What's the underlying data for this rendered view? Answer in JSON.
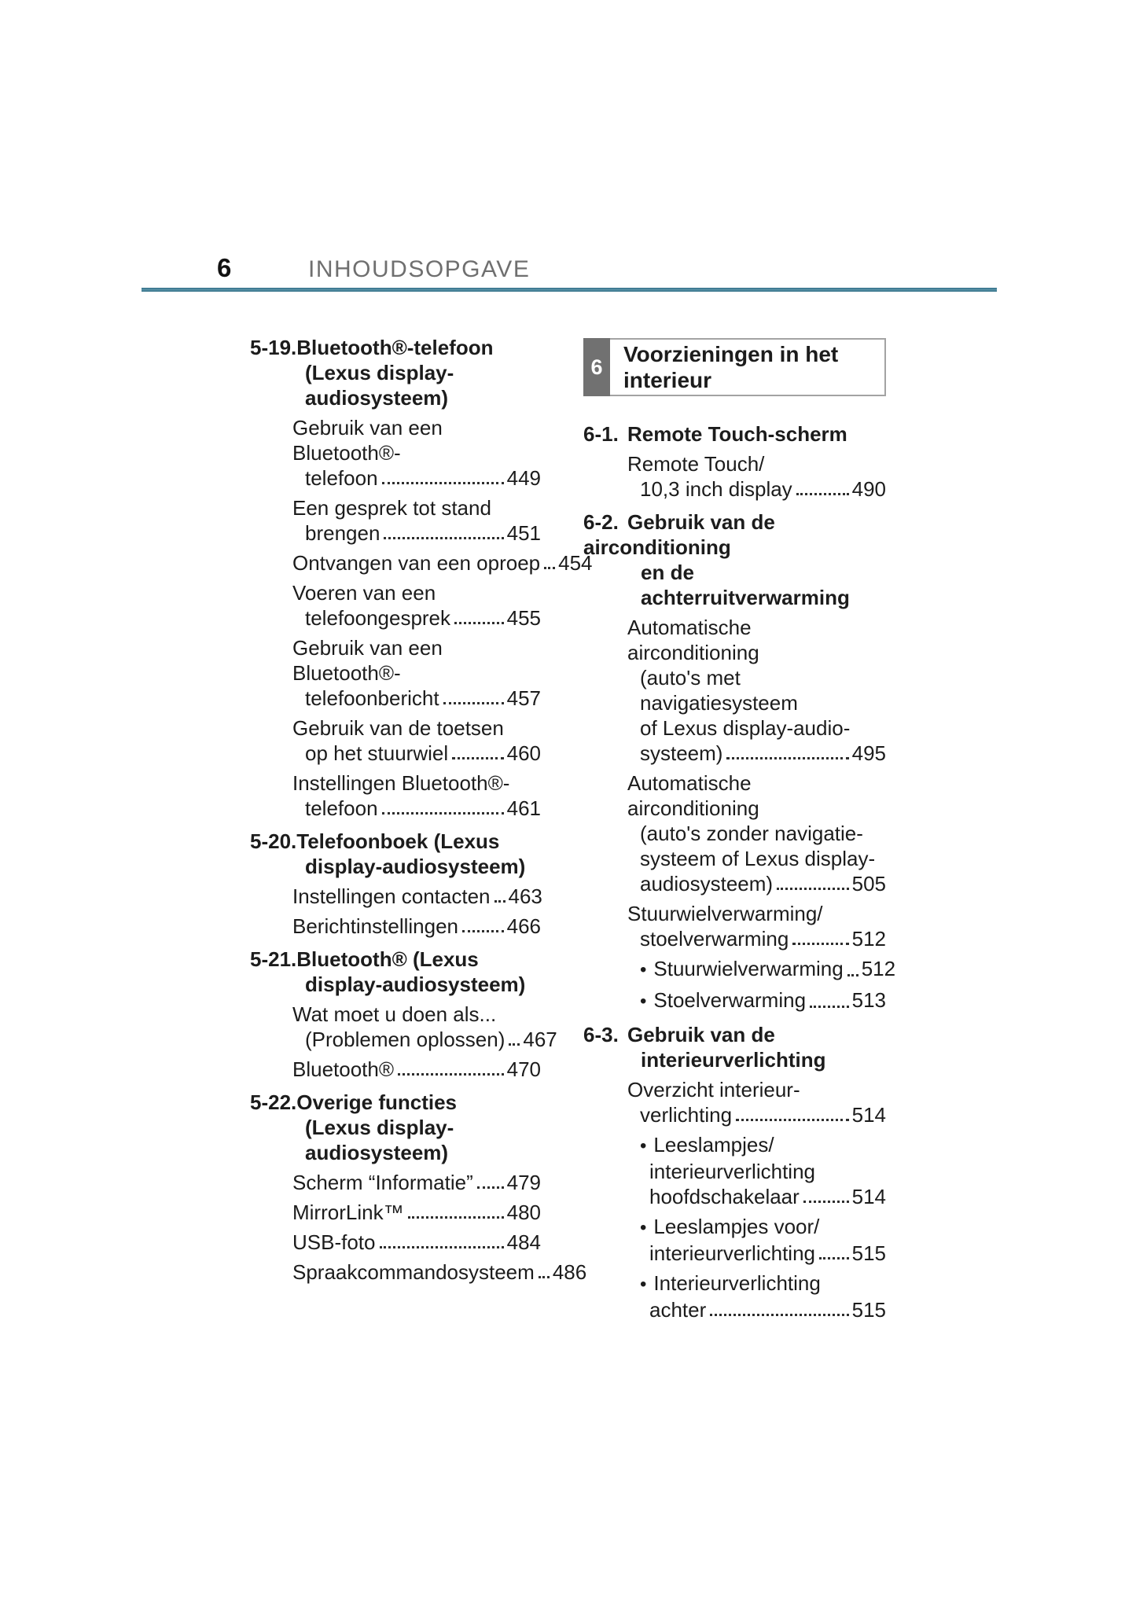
{
  "page": {
    "number": "6",
    "title": "INHOUDSOPGAVE"
  },
  "colors": {
    "header_rule_teal": "#3E7E95",
    "chapter_tab_gray": "#717171",
    "chapter_box_border": "#A3A3A3",
    "title_gray": "#6F6F6F",
    "text": "#1C1C1C"
  },
  "columns": [
    {
      "sections": [
        {
          "number": "5-19.",
          "title_lines": [
            "Bluetooth®-telefoon",
            "(Lexus display-audiosysteem)"
          ],
          "entries": [
            {
              "lines": [
                "Gebruik van een Bluetooth®-"
              ],
              "last": "telefoon",
              "page": "449"
            },
            {
              "lines": [
                "Een gesprek tot stand"
              ],
              "last": "brengen",
              "page": "451"
            },
            {
              "lines": [],
              "last": "Ontvangen van een oproep",
              "page": "454"
            },
            {
              "lines": [
                "Voeren van een"
              ],
              "last": "telefoongesprek",
              "page": "455"
            },
            {
              "lines": [
                "Gebruik van een Bluetooth®-"
              ],
              "last": "telefoonbericht",
              "page": "457"
            },
            {
              "lines": [
                "Gebruik van de toetsen"
              ],
              "last": "op het stuurwiel",
              "page": "460"
            },
            {
              "lines": [
                "Instellingen Bluetooth®-"
              ],
              "last": "telefoon",
              "page": "461"
            }
          ]
        },
        {
          "number": "5-20.",
          "title_lines": [
            "Telefoonboek (Lexus",
            "display-audiosysteem)"
          ],
          "entries": [
            {
              "lines": [],
              "last": "Instellingen contacten",
              "page": "463"
            },
            {
              "lines": [],
              "last": "Berichtinstellingen",
              "page": "466"
            }
          ]
        },
        {
          "number": "5-21.",
          "title_lines": [
            "Bluetooth® (Lexus",
            "display-audiosysteem)"
          ],
          "entries": [
            {
              "lines": [
                "Wat moet u doen als..."
              ],
              "last": "(Problemen oplossen)",
              "page": "467"
            },
            {
              "lines": [],
              "last": "Bluetooth®",
              "page": "470"
            }
          ]
        },
        {
          "number": "5-22.",
          "title_lines": [
            "Overige functies",
            "(Lexus display-audiosysteem)"
          ],
          "entries": [
            {
              "lines": [],
              "last": "Scherm “Informatie”",
              "page": "479"
            },
            {
              "lines": [],
              "last": "MirrorLink™",
              "page": "480"
            },
            {
              "lines": [],
              "last": "USB-foto",
              "page": "484"
            },
            {
              "lines": [],
              "last": "Spraakcommandosysteem",
              "page": "486"
            }
          ]
        }
      ]
    },
    {
      "chapter_box": {
        "number": "6",
        "title_lines": [
          "Voorzieningen in het",
          "interieur"
        ]
      },
      "sections": [
        {
          "number": "6-1.",
          "title_lines": [
            "Remote Touch-scherm"
          ],
          "entries": [
            {
              "lines": [
                "Remote Touch/"
              ],
              "last": "10,3 inch display",
              "page": "490"
            }
          ]
        },
        {
          "number": "6-2.",
          "title_lines": [
            "Gebruik van de airconditioning",
            "en de achterruitverwarming"
          ],
          "entries": [
            {
              "lines": [
                "Automatische airconditioning",
                "(auto's met navigatiesysteem",
                "of Lexus display-audio-"
              ],
              "last": "systeem)",
              "page": "495"
            },
            {
              "lines": [
                "Automatische airconditioning",
                "(auto's zonder navigatie-",
                "systeem of Lexus display-"
              ],
              "last": "audiosysteem)",
              "page": "505"
            },
            {
              "lines": [
                "Stuurwielverwarming/"
              ],
              "last": "stoelverwarming",
              "page": "512"
            },
            {
              "bullet": true,
              "lines": [],
              "last": "Stuurwielverwarming",
              "page": "512"
            },
            {
              "bullet": true,
              "lines": [],
              "last": "Stoelverwarming",
              "page": "513"
            }
          ]
        },
        {
          "number": "6-3.",
          "title_lines": [
            "Gebruik van de",
            "interieurverlichting"
          ],
          "entries": [
            {
              "lines": [
                "Overzicht interieur-"
              ],
              "last": "verlichting",
              "page": "514"
            },
            {
              "bullet": true,
              "lines": [
                "Leeslampjes/",
                "interieurverlichting"
              ],
              "last": "hoofdschakelaar",
              "page": "514"
            },
            {
              "bullet": true,
              "lines": [
                "Leeslampjes voor/"
              ],
              "last": "interieurverlichting",
              "page": "515"
            },
            {
              "bullet": true,
              "lines": [
                "Interieurverlichting"
              ],
              "last": "achter",
              "page": "515"
            }
          ]
        }
      ]
    }
  ]
}
